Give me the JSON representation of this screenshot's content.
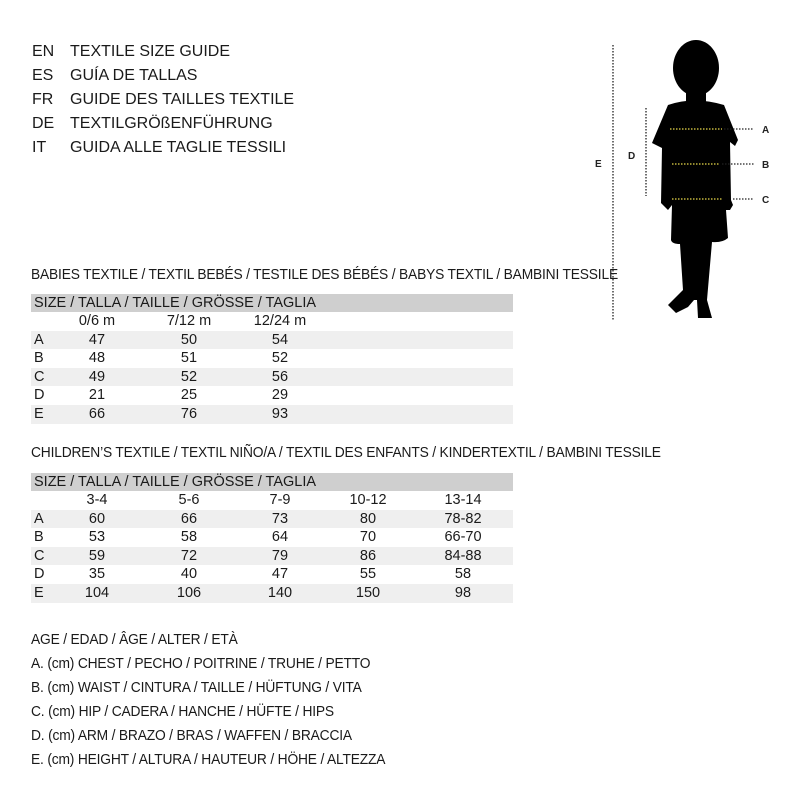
{
  "titles": [
    {
      "code": "EN",
      "text": "TEXTILE SIZE GUIDE"
    },
    {
      "code": "ES",
      "text": "GUÍA DE TALLAS"
    },
    {
      "code": "FR",
      "text": "GUIDE DES TAILLES TEXTILE"
    },
    {
      "code": "DE",
      "text": "TEXTILGRÖßENFÜHRUNG"
    },
    {
      "code": "IT",
      "text": "GUIDA ALLE TAGLIE TESSILI"
    }
  ],
  "babies": {
    "heading": "BABIES TEXTILE / TEXTIL BEBÉS / TESTILE DES BÉBÉS / BABYS TEXTIL / BAMBINI TESSILE",
    "size_header": "SIZE / TALLA / TAILLE / GRÖSSE / TAGLIA",
    "columns": [
      "0/6 m",
      "7/12 m",
      "12/24 m"
    ],
    "rows": [
      {
        "label": "A",
        "values": [
          "47",
          "50",
          "54"
        ]
      },
      {
        "label": "B",
        "values": [
          "48",
          "51",
          "52"
        ]
      },
      {
        "label": "C",
        "values": [
          "49",
          "52",
          "56"
        ]
      },
      {
        "label": "D",
        "values": [
          "21",
          "25",
          "29"
        ]
      },
      {
        "label": "E",
        "values": [
          "66",
          "76",
          "93"
        ]
      }
    ]
  },
  "children": {
    "heading": "CHILDREN’S TEXTILE / TEXTIL NIÑO/A / TEXTIL DES ENFANTS / KINDERTEXTIL / BAMBINI TESSILE",
    "size_header": "SIZE / TALLA / TAILLE / GRÖSSE / TAGLIA",
    "columns": [
      "3-4",
      "5-6",
      "7-9",
      "10-12",
      "13-14"
    ],
    "rows": [
      {
        "label": "A",
        "values": [
          "60",
          "66",
          "73",
          "80",
          "78-82"
        ]
      },
      {
        "label": "B",
        "values": [
          "53",
          "58",
          "64",
          "70",
          "66-70"
        ]
      },
      {
        "label": "C",
        "values": [
          "59",
          "72",
          "79",
          "86",
          "84-88"
        ]
      },
      {
        "label": "D",
        "values": [
          "35",
          "40",
          "47",
          "55",
          "58"
        ]
      },
      {
        "label": "E",
        "values": [
          "104",
          "106",
          "140",
          "150",
          "98"
        ]
      }
    ]
  },
  "legend": [
    "AGE / EDAD / ÂGE / ALTER / ETÀ",
    "A. (cm) CHEST / PECHO / POITRINE / TRUHE / PETTO",
    "B. (cm) WAIST / CINTURA / TAILLE / HÜFTUNG / VITA",
    "C. (cm) HIP / CADERA / HANCHE / HÜFTE / HIPS",
    "D. (cm) ARM / BRAZO / BRAS / WAFFEN / BRACCIA",
    "E. (cm) HEIGHT / ALTURA / HAUTEUR / HÖHE / ALTEZZA"
  ],
  "figure": {
    "labels": [
      "A",
      "B",
      "C",
      "D",
      "E"
    ],
    "icon": "child-silhouette-icon",
    "marker_color": "#e8d84a"
  }
}
